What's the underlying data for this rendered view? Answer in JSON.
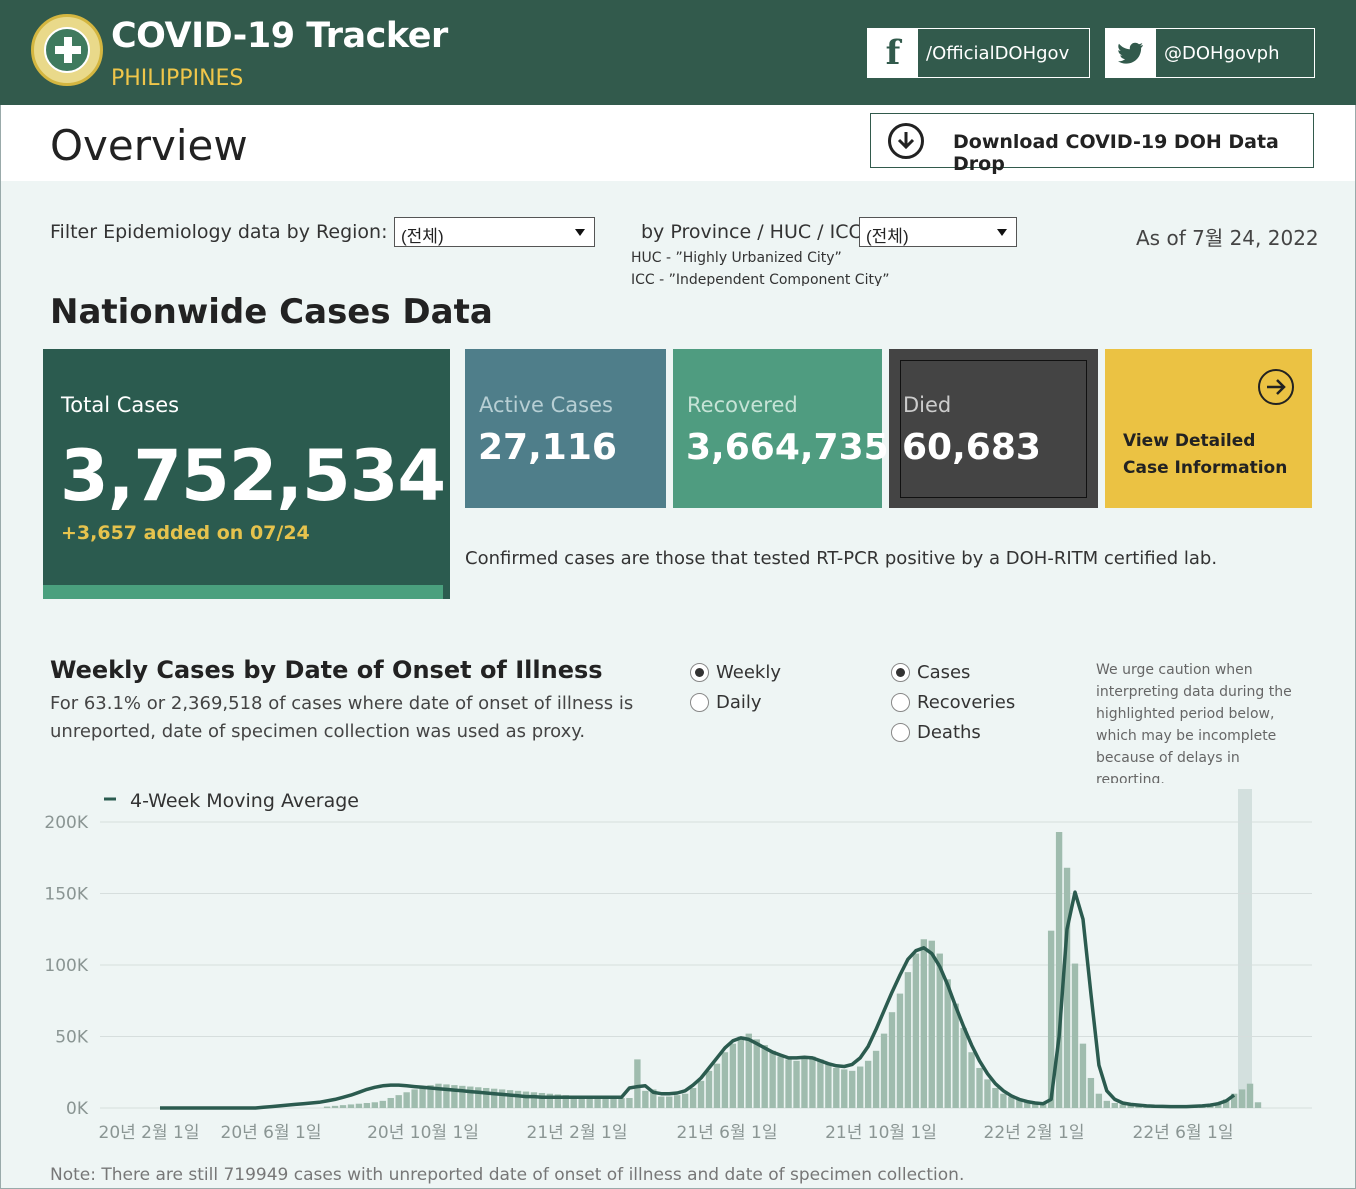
{
  "header": {
    "title": "COVID-19 Tracker",
    "subtitle": "PHILIPPINES",
    "facebook": "/OfficialDOHgov",
    "twitter": "@DOHgovph"
  },
  "overview": {
    "title": "Overview",
    "download_label": "Download COVID-19 DOH Data Drop"
  },
  "filters": {
    "region_label": "Filter Epidemiology data by Region:",
    "region_value": "(전체)",
    "province_label": "by Province / HUC / ICC:",
    "province_value": "(전체)",
    "huc_note": "HUC - ”Highly Urbanized City”",
    "icc_note": "ICC - ”Independent Component City”",
    "as_of": "As of 7월 24, 2022"
  },
  "nationwide": {
    "title": "Nationwide Cases Data",
    "total_label": "Total Cases",
    "total_value": "3,752,534",
    "added": "+3,657 added on 07/24",
    "active_label": "Active Cases",
    "active_value": "27,116",
    "recovered_label": "Recovered",
    "recovered_value": "3,664,735",
    "died_label": "Died",
    "died_value": "60,683",
    "view_label": "View Detailed Case Information",
    "confirmed_note": "Confirmed cases are those that tested RT-PCR positive by a DOH-RITM certified lab."
  },
  "weekly": {
    "title": "Weekly Cases by Date of Onset of Illness",
    "description": "For 63.1% or 2,369,518 of cases where date of onset of illness is unreported, date of specimen collection was used as proxy.",
    "freq_options": [
      "Weekly",
      "Daily"
    ],
    "freq_selected": "Weekly",
    "measure_options": [
      "Cases",
      "Recoveries",
      "Deaths"
    ],
    "measure_selected": "Cases",
    "caution": "We urge caution when interpreting data during the highlighted period below, which may be incomplete because of delays in reporting.",
    "note": "Note: There are still 719949 cases with unreported date of onset of illness and date of specimen collection."
  },
  "colors": {
    "header_bg": "#325a4c",
    "accent_yellow": "#ebc243",
    "bar": "#9fbcae",
    "line": "#2b5b4f"
  },
  "chart_data": {
    "type": "bar",
    "legend": "4-Week Moving Average",
    "ylim": [
      0,
      200000
    ],
    "yticks": [
      "200K",
      "150K",
      "100K",
      "50K",
      "0K"
    ],
    "xticks": [
      "20년 2월 1일",
      "20년 6월 1일",
      "20년 10월 1일",
      "21년 2월 1일",
      "21년 6월 1일",
      "21년 10월 1일",
      "22년 2월 1일",
      "22년 6월 1일"
    ],
    "bars": [
      0,
      0,
      0,
      0,
      0,
      0,
      0,
      0,
      0,
      0,
      0,
      0,
      0,
      0,
      0,
      0,
      0,
      0,
      0,
      0,
      0,
      1000,
      1500,
      2000,
      2500,
      3000,
      3500,
      4000,
      5000,
      7000,
      9000,
      11000,
      13000,
      15000,
      16000,
      17000,
      16500,
      16000,
      15500,
      15000,
      14500,
      14000,
      13500,
      13000,
      12500,
      12000,
      11500,
      11000,
      10500,
      10000,
      9500,
      9000,
      8500,
      8000,
      8000,
      7500,
      7500,
      7500,
      7000,
      7000,
      34000,
      12000,
      13000,
      8000,
      8000,
      9000,
      10000,
      14000,
      19000,
      26000,
      31000,
      39000,
      45000,
      50000,
      52000,
      48000,
      44000,
      40000,
      36000,
      34000,
      33000,
      35000,
      36000,
      34000,
      31000,
      28000,
      27000,
      26000,
      29000,
      33000,
      40000,
      52000,
      67000,
      80000,
      95000,
      108000,
      118000,
      117000,
      108000,
      90000,
      73000,
      56000,
      39000,
      28000,
      20000,
      14000,
      10000,
      8000,
      6000,
      4000,
      3500,
      3000,
      124000,
      193000,
      168000,
      101000,
      45000,
      21000,
      10000,
      5000,
      3500,
      2500,
      2000,
      1500,
      1200,
      1000,
      1000,
      1000,
      1000,
      1000,
      1200,
      1500,
      2000,
      3500,
      6000,
      10000,
      13000,
      17000,
      4000
    ],
    "moving_avg": [
      0,
      0,
      0,
      0,
      0,
      0,
      0,
      0,
      0,
      0,
      0,
      0,
      0,
      500,
      1000,
      1500,
      2000,
      2500,
      3000,
      3500,
      4000,
      5000,
      6000,
      7500,
      9000,
      11000,
      13000,
      14500,
      15500,
      16000,
      16000,
      15500,
      15000,
      14500,
      14000,
      13500,
      13000,
      12500,
      12000,
      11500,
      11000,
      10500,
      10000,
      9500,
      9000,
      8500,
      8000,
      8000,
      7500,
      7500,
      7500,
      7500,
      7500,
      7500,
      7500,
      7500,
      7500,
      7500,
      7500,
      14000,
      15000,
      15500,
      11000,
      10000,
      10000,
      10500,
      12000,
      16000,
      21000,
      28000,
      35000,
      42000,
      47000,
      49000,
      48000,
      45000,
      42000,
      39000,
      37000,
      35000,
      35000,
      35500,
      35000,
      33000,
      31000,
      29500,
      29000,
      30500,
      35000,
      43000,
      55000,
      68000,
      81000,
      93000,
      104000,
      110000,
      112000,
      108000,
      99000,
      86000,
      71000,
      57000,
      44000,
      33000,
      24000,
      17000,
      12000,
      8500,
      6000,
      4500,
      3500,
      3000,
      6000,
      50000,
      125000,
      151000,
      132000,
      80000,
      30000,
      12000,
      6000,
      3500,
      2500,
      2000,
      1500,
      1200,
      1100,
      1000,
      1000,
      1000,
      1200,
      1500,
      2000,
      3000,
      5000,
      9000
    ]
  }
}
